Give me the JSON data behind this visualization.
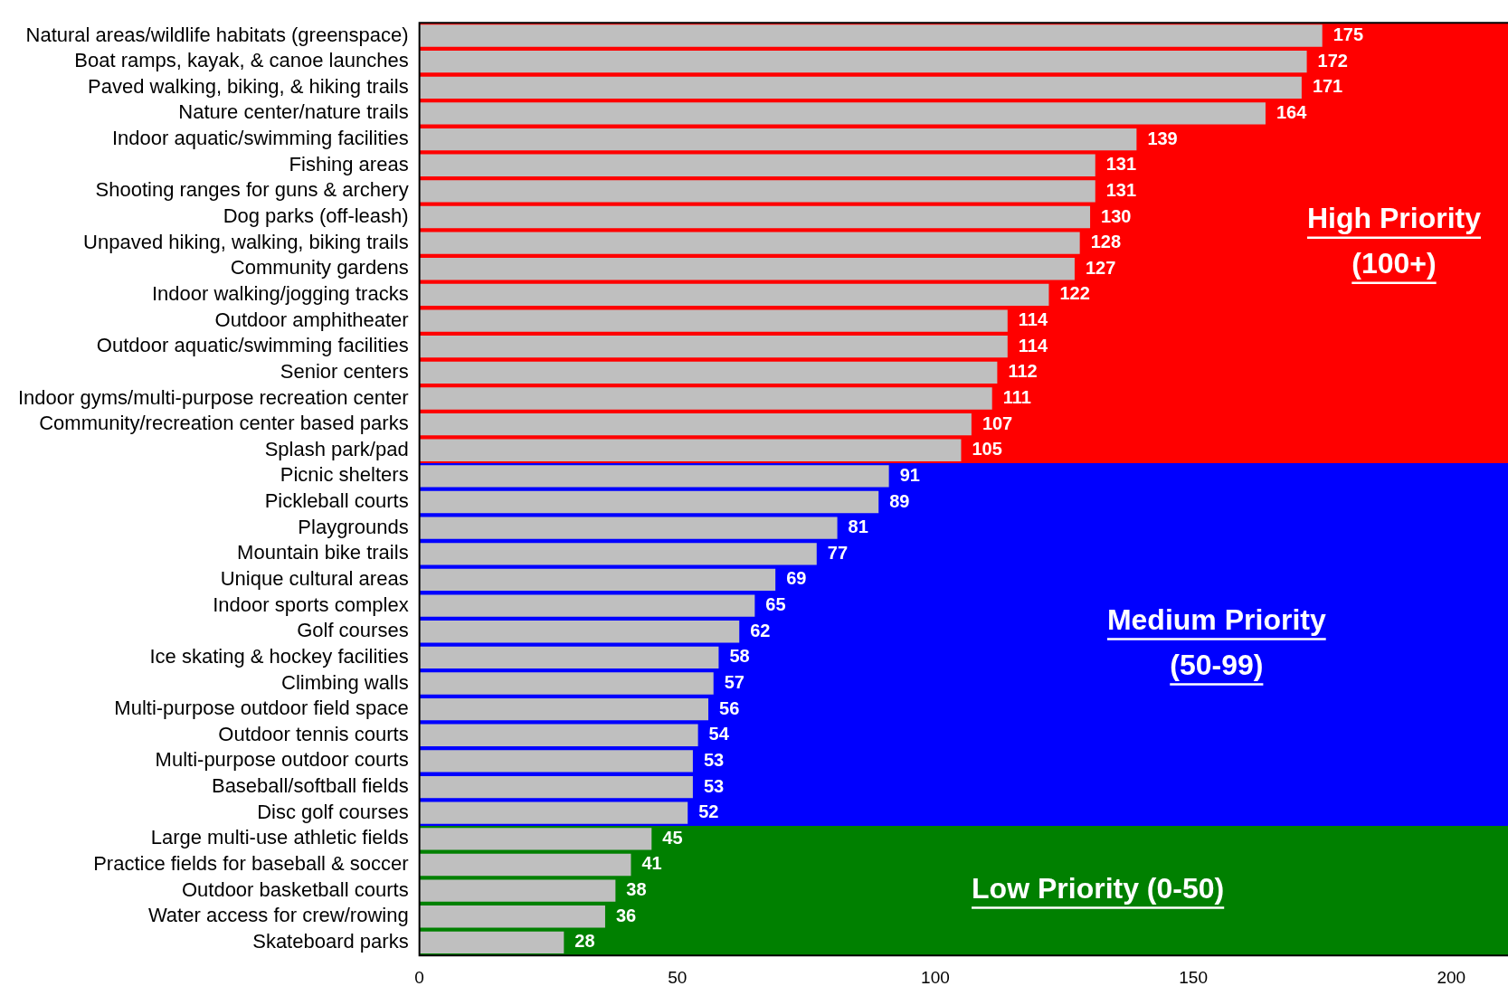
{
  "chart_data": {
    "type": "bar",
    "orientation": "horizontal",
    "categories": [
      "Natural areas/wildlife habitats (greenspace)",
      "Boat ramps, kayak, & canoe launches",
      "Paved walking, biking, & hiking trails",
      "Nature center/nature trails",
      "Indoor aquatic/swimming facilities",
      "Fishing areas",
      "Shooting ranges for guns & archery",
      "Dog parks (off-leash)",
      "Unpaved hiking, walking, biking trails",
      "Community gardens",
      "Indoor walking/jogging tracks",
      "Outdoor amphitheater",
      "Outdoor aquatic/swimming facilities",
      "Senior centers",
      "Indoor gyms/multi-purpose recreation center",
      "Community/recreation center based parks",
      "Splash park/pad",
      "Picnic shelters",
      "Pickleball courts",
      "Playgrounds",
      "Mountain bike trails",
      "Unique cultural areas",
      "Indoor sports complex",
      "Golf courses",
      "Ice skating & hockey facilities",
      "Climbing walls",
      "Multi-purpose outdoor field space",
      "Outdoor tennis courts",
      "Multi-purpose outdoor courts",
      "Baseball/softball fields",
      "Disc golf courses",
      "Large multi-use athletic fields",
      "Practice fields for baseball & soccer",
      "Outdoor basketball courts",
      "Water access for crew/rowing",
      "Skateboard parks"
    ],
    "values": [
      175,
      172,
      171,
      164,
      139,
      131,
      131,
      130,
      128,
      127,
      122,
      114,
      114,
      112,
      111,
      107,
      105,
      91,
      89,
      81,
      77,
      69,
      65,
      62,
      58,
      57,
      56,
      54,
      53,
      53,
      52,
      45,
      41,
      38,
      36,
      28
    ],
    "color": "#bfbfbf",
    "data_labels": true,
    "xlim": [
      0,
      211
    ],
    "xticks": [
      0,
      50,
      100,
      150,
      200
    ],
    "grid": false,
    "legend": false,
    "bands": [
      {
        "axis": "y",
        "from": "Natural areas/wildlife habitats (greenspace)",
        "to": "Splash park/pad",
        "label": "High Priority\n(100+)",
        "color": "#ff0000"
      },
      {
        "axis": "y",
        "from": "Picnic shelters",
        "to": "Disc golf courses",
        "label": "Medium Priority\n(50-99)",
        "color": "#0000ff"
      },
      {
        "axis": "y",
        "from": "Large multi-use athletic fields",
        "to": "Skateboard parks",
        "label": "Low Priority (0-50)",
        "color": "#008000"
      }
    ]
  }
}
